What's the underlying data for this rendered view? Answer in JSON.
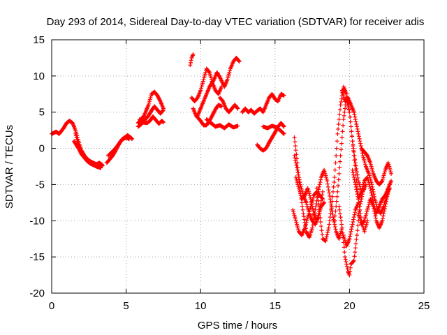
{
  "chart_data": {
    "type": "scatter",
    "title": "Day 293 of 2014, Sidereal Day-to-day VTEC variation (SDTVAR) for receiver adis",
    "xlabel": "GPS time / hours",
    "ylabel": "SDTVAR / TECUs",
    "xlim": [
      0,
      25
    ],
    "ylim": [
      -20,
      15
    ],
    "xticks": [
      0,
      5,
      10,
      15,
      20,
      25
    ],
    "yticks": [
      15,
      10,
      5,
      0,
      -5,
      -10,
      -15,
      -20
    ],
    "x_tick_labels": [
      "0",
      "5",
      "10",
      "15",
      "20",
      "25"
    ],
    "y_tick_labels": [
      "15",
      "10",
      "5",
      "0",
      "-5",
      "-10",
      "-15",
      "-20"
    ],
    "grid": true,
    "legend": "none",
    "marker": "plus",
    "series": [
      {
        "name": "SDTVAR",
        "color": "#ff0000",
        "tracks": [
          {
            "x": [
              0.0,
              0.3,
              0.5,
              0.8,
              1.0,
              1.2,
              1.4,
              1.6,
              1.8,
              2.0,
              2.2,
              2.4,
              2.6,
              2.8,
              3.0,
              3.2,
              3.4
            ],
            "y": [
              2.0,
              2.3,
              2.0,
              2.8,
              3.5,
              3.8,
              3.5,
              2.5,
              1.0,
              -0.3,
              -1.0,
              -1.5,
              -1.8,
              -2.0,
              -2.2,
              -2.0,
              -2.3
            ]
          },
          {
            "x": [
              1.6,
              1.8,
              2.0,
              2.2,
              2.4,
              2.6,
              2.8,
              3.0,
              3.2,
              3.4
            ],
            "y": [
              2.0,
              0.5,
              -0.5,
              -1.3,
              -1.7,
              -2.0,
              -2.2,
              -2.3,
              -2.5,
              -2.4
            ]
          },
          {
            "x": [
              1.5,
              1.8,
              2.0,
              2.2,
              2.4,
              2.6,
              2.8,
              3.0,
              3.3
            ],
            "y": [
              1.0,
              0.0,
              -0.8,
              -1.3,
              -1.8,
              -2.1,
              -2.3,
              -2.5,
              -2.7
            ]
          },
          {
            "x": [
              3.7,
              3.9,
              4.1,
              4.3,
              4.5,
              4.7,
              4.9,
              5.1,
              5.3,
              5.4
            ],
            "y": [
              -2.0,
              -1.5,
              -1.0,
              -0.3,
              0.5,
              1.2,
              1.5,
              1.8,
              1.5,
              1.3
            ]
          },
          {
            "x": [
              3.8,
              4.0,
              4.2,
              4.4,
              4.6,
              4.8,
              5.0,
              5.2
            ],
            "y": [
              -1.0,
              -0.6,
              -0.2,
              0.3,
              0.9,
              1.3,
              1.5,
              1.3
            ]
          },
          {
            "x": [
              5.8,
              6.0,
              6.2,
              6.5,
              6.7,
              6.9,
              7.1,
              7.3,
              7.5
            ],
            "y": [
              3.5,
              4.0,
              4.5,
              6.0,
              7.5,
              7.8,
              7.3,
              6.5,
              5.5
            ]
          },
          {
            "x": [
              5.8,
              6.0,
              6.2,
              6.5,
              6.7,
              6.9,
              7.1,
              7.3,
              7.5
            ],
            "y": [
              3.0,
              3.3,
              3.8,
              4.5,
              5.2,
              5.8,
              5.3,
              4.8,
              5.3
            ]
          },
          {
            "x": [
              5.9,
              6.1,
              6.4,
              6.6,
              6.8,
              7.0,
              7.2,
              7.4,
              7.5
            ],
            "y": [
              4.0,
              3.6,
              3.5,
              3.8,
              4.4,
              3.9,
              3.4,
              3.8,
              3.6
            ]
          },
          {
            "x": [
              9.3,
              9.4,
              9.5
            ],
            "y": [
              11.5,
              12.5,
              13.0
            ]
          },
          {
            "x": [
              9.4,
              9.6,
              9.8,
              10.0,
              10.2,
              10.4,
              10.6,
              10.8,
              11.0,
              11.2,
              11.4
            ],
            "y": [
              7.0,
              6.5,
              7.0,
              8.0,
              9.5,
              11.0,
              10.5,
              9.0,
              8.0,
              7.5,
              8.5
            ]
          },
          {
            "x": [
              9.5,
              9.7,
              10.0,
              10.2,
              10.4,
              10.6,
              10.8,
              11.0,
              11.2,
              11.4
            ],
            "y": [
              5.5,
              4.5,
              3.8,
              3.2,
              3.2,
              3.8,
              4.6,
              5.4,
              6.0,
              5.8
            ]
          },
          {
            "x": [
              9.8,
              10.0,
              10.3,
              10.6,
              10.9,
              11.1,
              11.3,
              11.6,
              11.8,
              12.0,
              12.2,
              12.4,
              12.6
            ],
            "y": [
              4.5,
              5.5,
              7.0,
              8.5,
              9.5,
              10.5,
              9.8,
              8.5,
              9.5,
              11.0,
              12.0,
              12.5,
              12.0
            ]
          },
          {
            "x": [
              10.4,
              10.7,
              11.0,
              11.3,
              11.6,
              11.9,
              12.2,
              12.5
            ],
            "y": [
              4.0,
              3.5,
              3.0,
              3.2,
              2.8,
              3.3,
              2.9,
              3.1
            ]
          },
          {
            "x": [
              11.3,
              11.5,
              11.7,
              11.9,
              12.1,
              12.3,
              12.5
            ],
            "y": [
              7.0,
              6.5,
              5.5,
              5.0,
              5.5,
              6.0,
              5.5
            ]
          },
          {
            "x": [
              12.8,
              13.0,
              13.2,
              13.4,
              13.6,
              13.8,
              14.0,
              14.2,
              14.4,
              14.6,
              14.8,
              15.0,
              15.2,
              15.4,
              15.6
            ],
            "y": [
              5.0,
              5.5,
              5.0,
              5.3,
              4.8,
              5.2,
              5.5,
              5.0,
              6.0,
              7.0,
              7.5,
              6.8,
              6.5,
              7.5,
              7.3
            ]
          },
          {
            "x": [
              13.8,
              14.0,
              14.2,
              14.4,
              14.6,
              14.8,
              15.0,
              15.2,
              15.4,
              15.6
            ],
            "y": [
              0.5,
              0.0,
              -0.3,
              0.0,
              0.8,
              1.5,
              2.2,
              3.0,
              3.5,
              3.0
            ]
          },
          {
            "x": [
              14.2,
              14.5,
              14.8,
              15.1,
              15.4,
              15.6
            ],
            "y": [
              3.0,
              2.8,
              3.1,
              2.9,
              2.4,
              2.0
            ]
          },
          {
            "x": [
              16.3,
              16.5,
              16.7,
              16.9,
              17.1,
              17.3,
              17.5,
              17.7,
              17.9,
              18.1,
              18.3,
              18.5,
              18.7,
              18.9,
              19.1,
              19.3,
              19.5
            ],
            "y": [
              1.5,
              -2.0,
              -6.0,
              -9.0,
              -11.5,
              -12.3,
              -11.0,
              -8.5,
              -6.0,
              -4.0,
              -3.0,
              -4.5,
              -7.0,
              -9.5,
              -11.5,
              -12.5,
              -11.0
            ]
          },
          {
            "x": [
              16.3,
              16.5,
              16.7,
              16.9,
              17.1,
              17.3,
              17.5,
              17.7,
              17.9,
              18.1,
              18.3
            ],
            "y": [
              -1.0,
              -3.0,
              -5.0,
              -6.5,
              -7.5,
              -9.0,
              -10.0,
              -10.5,
              -9.5,
              -8.0,
              -7.5
            ]
          },
          {
            "x": [
              16.4,
              16.6,
              16.8,
              17.0,
              17.2,
              17.4,
              17.6,
              17.8,
              18.0,
              18.2
            ],
            "y": [
              -4.0,
              -5.5,
              -7.0,
              -6.5,
              -5.5,
              -7.0,
              -9.0,
              -10.0,
              -8.5,
              -6.0
            ]
          },
          {
            "x": [
              16.2,
              16.4,
              16.6,
              16.8,
              17.0,
              17.2,
              17.4,
              17.6,
              17.8,
              18.0,
              18.2
            ],
            "y": [
              -8.5,
              -10.0,
              -11.5,
              -12.0,
              -11.0,
              -9.5,
              -8.0,
              -6.5,
              -6.0,
              -6.5,
              -7.0
            ]
          },
          {
            "x": [
              17.8,
              18.0,
              18.2,
              18.4,
              18.6,
              18.8,
              19.0,
              19.2,
              19.4,
              19.6,
              19.8,
              20.0,
              20.2,
              20.4,
              20.6,
              20.8,
              21.0,
              21.2
            ],
            "y": [
              -5.5,
              -9.0,
              -12.5,
              -12.8,
              -11.0,
              -8.0,
              -4.0,
              2.0,
              6.0,
              8.5,
              7.5,
              5.0,
              1.0,
              -3.0,
              -7.0,
              -10.0,
              -11.5,
              -10.0
            ]
          },
          {
            "x": [
              19.0,
              19.2,
              19.4,
              19.6,
              19.8,
              20.0,
              20.2,
              20.4,
              20.6,
              20.8
            ],
            "y": [
              -10.0,
              -6.0,
              -1.0,
              4.0,
              7.0,
              5.0,
              1.0,
              -2.0,
              -4.5,
              -6.0
            ]
          },
          {
            "x": [
              19.3,
              19.5,
              19.7,
              19.9,
              20.0,
              20.1,
              20.3,
              20.5,
              20.7,
              20.9,
              21.1
            ],
            "y": [
              -8.0,
              -11.0,
              -15.0,
              -17.0,
              -17.5,
              -16.0,
              -15.5,
              -12.0,
              -8.0,
              -6.0,
              -5.0
            ]
          },
          {
            "x": [
              19.5,
              19.7,
              19.9,
              20.1,
              20.3,
              20.5,
              20.7,
              20.9,
              21.1,
              21.3,
              21.5,
              21.7,
              21.9,
              22.1,
              22.3,
              22.5,
              22.7
            ],
            "y": [
              8.0,
              6.5,
              7.0,
              6.0,
              5.0,
              3.0,
              1.0,
              -1.0,
              -2.5,
              -3.5,
              -5.0,
              -7.0,
              -8.5,
              -9.0,
              -8.0,
              -6.5,
              -5.5
            ]
          },
          {
            "x": [
              20.2,
              20.4,
              20.6,
              20.8,
              21.0,
              21.2,
              21.4,
              21.6,
              21.8,
              22.0,
              22.2,
              22.4,
              22.6,
              22.8
            ],
            "y": [
              -3.0,
              -5.0,
              -7.0,
              -6.0,
              -4.5,
              -4.0,
              -5.5,
              -7.5,
              -9.0,
              -8.0,
              -7.0,
              -6.5,
              -5.5,
              -4.5
            ]
          },
          {
            "x": [
              20.6,
              20.8,
              21.0,
              21.2,
              21.4,
              21.6,
              21.8,
              22.0,
              22.2,
              22.4,
              22.6
            ],
            "y": [
              -9.0,
              -10.5,
              -10.0,
              -8.5,
              -7.0,
              -8.0,
              -10.0,
              -11.0,
              -10.0,
              -8.0,
              -6.0
            ]
          },
          {
            "x": [
              20.8,
              21.0,
              21.2,
              21.4,
              21.6,
              21.8,
              22.0,
              22.2,
              22.4,
              22.6,
              22.8
            ],
            "y": [
              0.0,
              -0.5,
              -1.0,
              -2.0,
              -3.5,
              -4.5,
              -5.0,
              -4.5,
              -3.0,
              -2.0,
              -3.5
            ]
          },
          {
            "x": [
              19.6,
              19.8,
              20.0,
              20.2,
              20.4,
              20.6
            ],
            "y": [
              -12.0,
              -13.5,
              -12.5,
              -10.5,
              -8.5,
              -7.5
            ]
          }
        ]
      }
    ]
  }
}
